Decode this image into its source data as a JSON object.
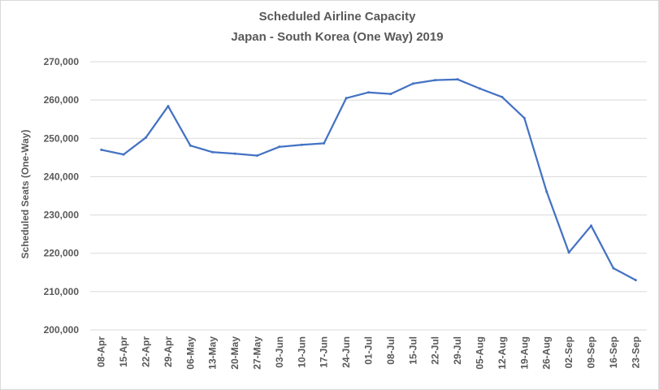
{
  "chart_data": {
    "type": "line",
    "title": "Scheduled Airline Capacity",
    "subtitle": "Japan - South Korea (One Way) 2019",
    "xlabel": "",
    "ylabel": "Scheduled Seats (One-Way)",
    "ylim": [
      200000,
      270000
    ],
    "yticks": [
      200000,
      210000,
      220000,
      230000,
      240000,
      250000,
      260000,
      270000
    ],
    "ytick_labels": [
      "200,000",
      "210,000",
      "220,000",
      "230,000",
      "240,000",
      "250,000",
      "260,000",
      "270,000"
    ],
    "grid": true,
    "legend": "none",
    "categories": [
      "08-Apr",
      "15-Apr",
      "22-Apr",
      "29-Apr",
      "06-May",
      "13-May",
      "20-May",
      "27-May",
      "03-Jun",
      "10-Jun",
      "17-Jun",
      "24-Jun",
      "01-Jul",
      "08-Jul",
      "15-Jul",
      "22-Jul",
      "29-Jul",
      "05-Aug",
      "12-Aug",
      "19-Aug",
      "26-Aug",
      "02-Sep",
      "09-Sep",
      "16-Sep",
      "23-Sep"
    ],
    "series": [
      {
        "name": "Scheduled Seats",
        "color": "#4472c4",
        "values": [
          247000,
          245800,
          250200,
          258400,
          248100,
          246400,
          246000,
          245500,
          247800,
          248300,
          248700,
          260500,
          262000,
          261600,
          264300,
          265200,
          265400,
          263000,
          260800,
          255300,
          236100,
          220200,
          227200,
          216100,
          213000
        ]
      }
    ]
  }
}
